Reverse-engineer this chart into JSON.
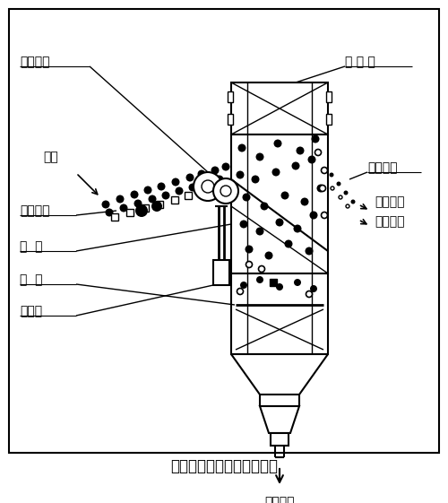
{
  "title": "机械式动筛跳汰机结构特征",
  "bg_color": "#ffffff",
  "labels": {
    "top_left": "驱动装置",
    "top_right": "提 升 轮",
    "left1": "入料",
    "left2": "入料溜槽",
    "left3": "槽  体",
    "left4": "筛  板",
    "left5": "排料轮",
    "right1": "出料溜槽",
    "right2": "轻质物料",
    "right3": "重质物料",
    "bottom1": "透筛物料",
    "caption": "机械式动筛跳汰机结构特征"
  },
  "figsize": [
    5.0,
    5.61
  ],
  "dpi": 100
}
